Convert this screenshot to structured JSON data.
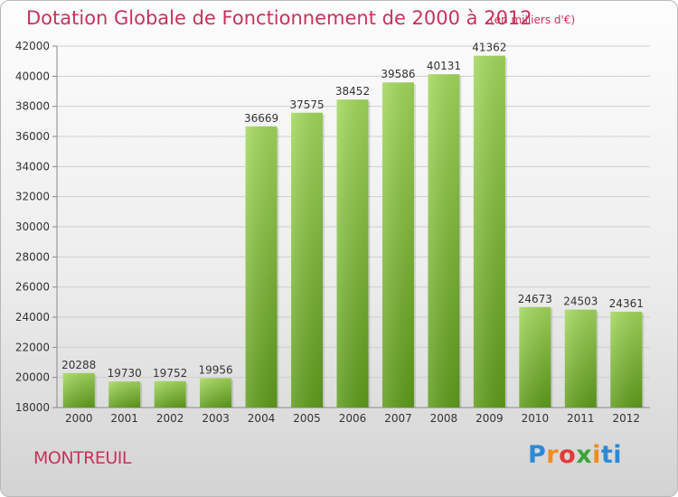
{
  "header": {
    "title": "Dotation Globale de Fonctionnement de 2000 à 2012",
    "unit": "(en milliers d'€)"
  },
  "footer": {
    "commune": "MONTREUIL",
    "logo_letters": [
      "P",
      "r",
      "o",
      "x",
      "i",
      "t",
      "i"
    ]
  },
  "colors": {
    "title": "#c8325a",
    "bar_top": "#9fd456",
    "bar_bottom": "#5f9e1c",
    "grid": "#cfcfcf"
  },
  "chart_data": {
    "type": "bar",
    "title": "Dotation Globale de Fonctionnement de 2000 à 2012",
    "categories": [
      "2000",
      "2001",
      "2002",
      "2003",
      "2004",
      "2005",
      "2006",
      "2007",
      "2008",
      "2009",
      "2010",
      "2011",
      "2012"
    ],
    "values": [
      20288,
      19730,
      19752,
      19956,
      36669,
      37575,
      38452,
      39586,
      40131,
      41362,
      24673,
      24503,
      24361
    ],
    "ylim": [
      18000,
      42000
    ],
    "yticks": [
      18000,
      20000,
      22000,
      24000,
      26000,
      28000,
      30000,
      32000,
      34000,
      36000,
      38000,
      40000,
      42000
    ],
    "grid": true,
    "legend": "none",
    "data_labels": true
  }
}
